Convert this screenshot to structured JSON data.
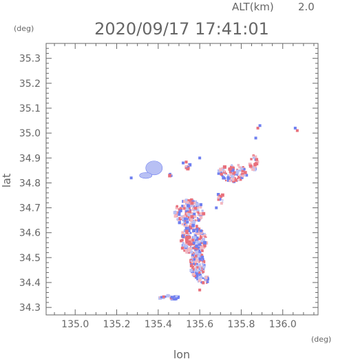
{
  "header": {
    "alt_label": "ALT(km)",
    "alt_value": "2.0",
    "timestamp": "2020/09/17 17:41:01"
  },
  "chart_data": {
    "type": "scatter",
    "title": "2020/09/17 17:41:01",
    "xlabel": "lon",
    "ylabel": "lat",
    "xunit": "(deg)",
    "yunit": "(deg)",
    "xlim": [
      134.86,
      136.17
    ],
    "ylim": [
      34.27,
      35.36
    ],
    "xticks": [
      135.0,
      135.2,
      135.4,
      135.6,
      135.8,
      136.0
    ],
    "xtick_labels": [
      "135.0",
      "135.2",
      "135.4",
      "135.6",
      "135.8",
      "136.0"
    ],
    "yticks": [
      34.3,
      34.4,
      34.5,
      34.6,
      34.7,
      34.8,
      34.9,
      35.0,
      35.1,
      35.2,
      35.3
    ],
    "ytick_labels": [
      "34.3",
      "34.4",
      "34.5",
      "34.6",
      "34.7",
      "34.8",
      "34.9",
      "35.0",
      "35.1",
      "35.2",
      "35.3"
    ],
    "grid": false,
    "colors": {
      "positive": "#e8707c",
      "negative": "#6f7ff0",
      "light_negative": "#b8c0f4",
      "light_positive": "#f4b8c0",
      "axis": "#666666"
    },
    "clusters": [
      {
        "lon": 135.55,
        "lat": 34.68,
        "r_lon": 0.07,
        "r_lat": 0.055,
        "n": 170,
        "mix": 0.5
      },
      {
        "lon": 135.57,
        "lat": 34.57,
        "r_lon": 0.065,
        "r_lat": 0.06,
        "n": 180,
        "mix": 0.55
      },
      {
        "lon": 135.59,
        "lat": 34.47,
        "r_lon": 0.035,
        "r_lat": 0.055,
        "n": 120,
        "mix": 0.5
      },
      {
        "lon": 135.62,
        "lat": 34.41,
        "r_lon": 0.03,
        "r_lat": 0.015,
        "n": 25,
        "mix": 0.4
      },
      {
        "lon": 135.76,
        "lat": 34.84,
        "r_lon": 0.07,
        "r_lat": 0.035,
        "n": 95,
        "mix": 0.55
      },
      {
        "lon": 135.86,
        "lat": 34.88,
        "r_lon": 0.02,
        "r_lat": 0.03,
        "n": 30,
        "mix": 0.55
      },
      {
        "lon": 135.7,
        "lat": 34.74,
        "r_lon": 0.015,
        "r_lat": 0.025,
        "n": 12,
        "mix": 0.5
      },
      {
        "lon": 135.45,
        "lat": 34.34,
        "r_lon": 0.05,
        "r_lat": 0.008,
        "n": 25,
        "mix": 0.35
      },
      {
        "lon": 135.54,
        "lat": 34.87,
        "r_lon": 0.015,
        "r_lat": 0.015,
        "n": 10,
        "mix": 0.5
      },
      {
        "lon": 135.46,
        "lat": 34.83,
        "r_lon": 0.01,
        "r_lat": 0.01,
        "n": 6,
        "mix": 0.5
      }
    ],
    "blobs": [
      {
        "lon": 135.38,
        "lat": 34.86,
        "r_lon": 0.04,
        "r_lat": 0.028,
        "color": "light_negative"
      },
      {
        "lon": 135.34,
        "lat": 34.83,
        "r_lon": 0.03,
        "r_lat": 0.012,
        "color": "light_negative"
      }
    ],
    "points": [
      {
        "lon": 135.88,
        "lat": 35.02,
        "sign": "+"
      },
      {
        "lon": 135.89,
        "lat": 35.03,
        "sign": "-"
      },
      {
        "lon": 136.07,
        "lat": 35.01,
        "sign": "+"
      },
      {
        "lon": 136.06,
        "lat": 35.02,
        "sign": "-"
      },
      {
        "lon": 135.6,
        "lat": 34.37,
        "sign": "+"
      },
      {
        "lon": 135.52,
        "lat": 34.88,
        "sign": "-"
      },
      {
        "lon": 135.6,
        "lat": 34.9,
        "sign": "-"
      },
      {
        "lon": 135.68,
        "lat": 34.7,
        "sign": "-"
      },
      {
        "lon": 135.87,
        "lat": 34.98,
        "sign": "-"
      },
      {
        "lon": 135.27,
        "lat": 34.82,
        "sign": "-"
      }
    ]
  }
}
